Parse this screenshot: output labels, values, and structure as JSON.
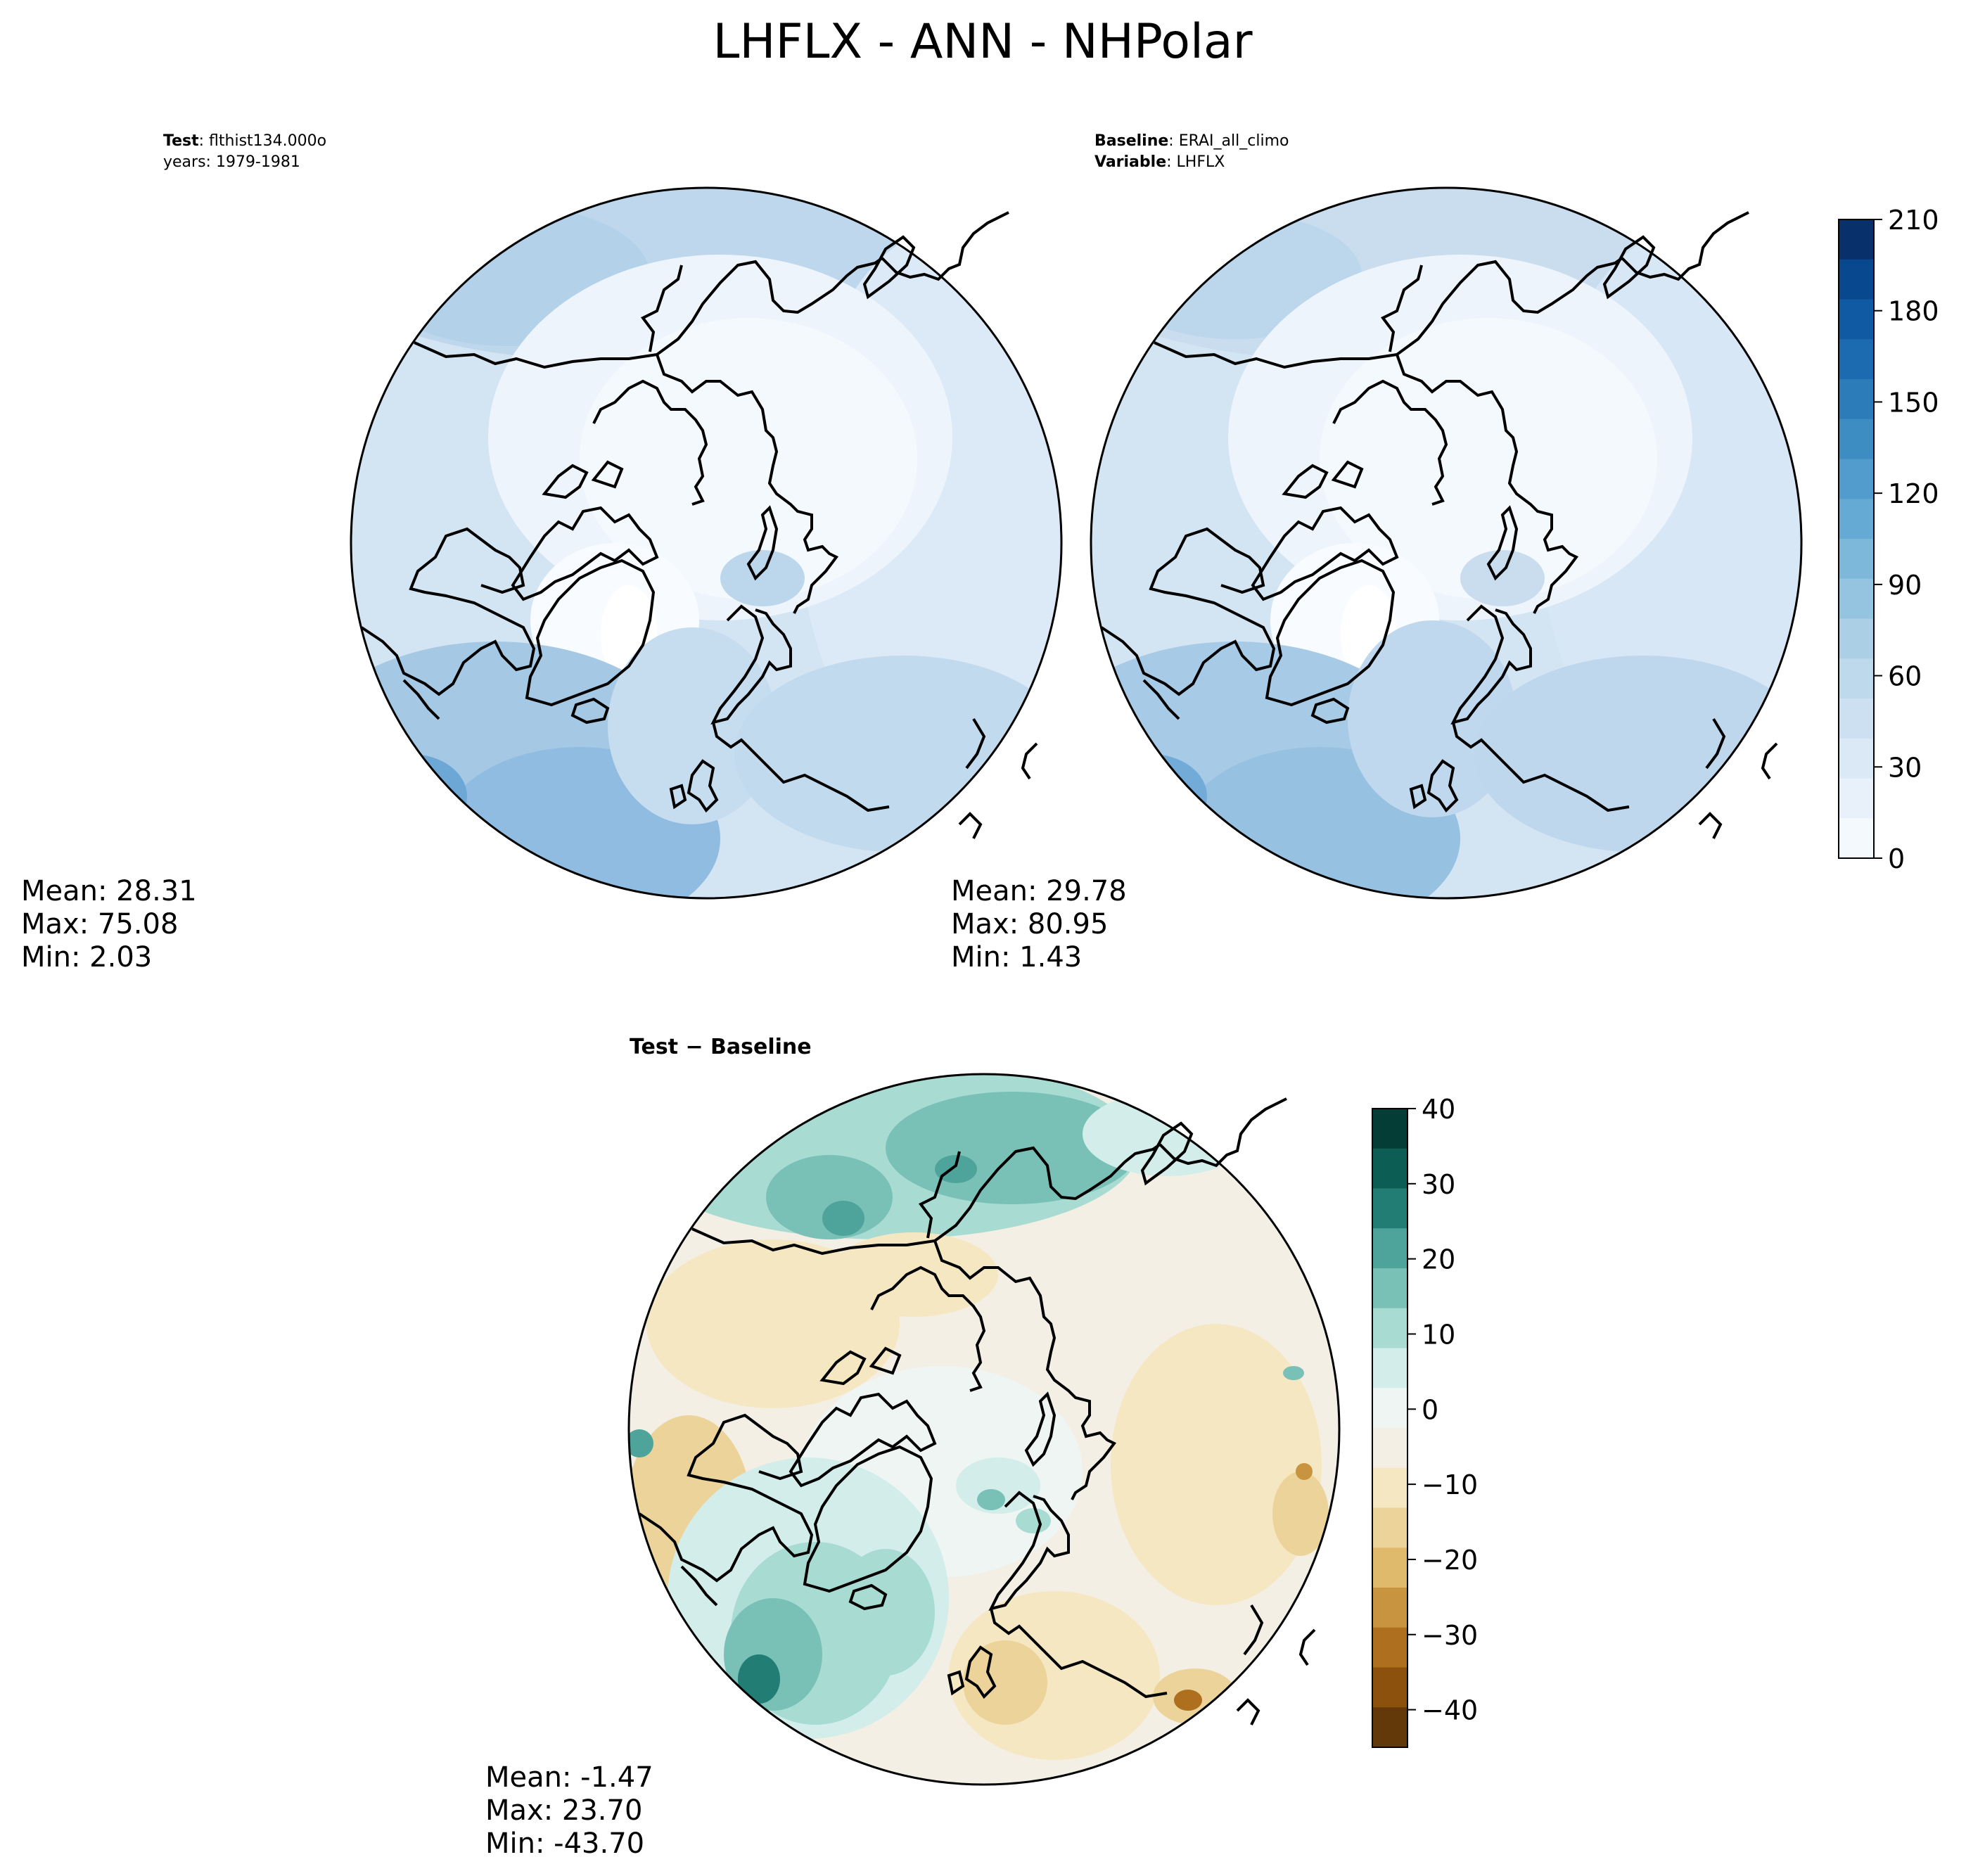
{
  "figure": {
    "title": "LHFLX - ANN - NHPolar"
  },
  "panels": {
    "test": {
      "header_bold": "Test",
      "header_value": "flthist134.000o",
      "header_line2": "years: 1979-1981",
      "stats": {
        "mean": "Mean: 28.31",
        "max": "Max: 75.08",
        "min": "Min:  2.03"
      }
    },
    "baseline": {
      "header_bold": "Baseline",
      "header_value": "ERAI_all_climo",
      "header2_bold": "Variable",
      "header2_value": "LHFLX",
      "stats": {
        "mean": "Mean: 29.78",
        "max": "Max: 80.95",
        "min": "Min:  1.43"
      }
    },
    "diff": {
      "header": "Test − Baseline",
      "stats": {
        "mean": "Mean: -1.47",
        "max": "Max: 23.70",
        "min": "Min: -43.70"
      }
    }
  },
  "colorbars": {
    "field": {
      "ticks": [
        "0",
        "30",
        "60",
        "90",
        "120",
        "150",
        "180",
        "210"
      ],
      "colors": [
        "#f4f9fe",
        "#e8f1fa",
        "#dbe9f6",
        "#cde0f1",
        "#bed8ec",
        "#abcfe5",
        "#94c4df",
        "#7db8da",
        "#65aad4",
        "#519ccc",
        "#3d8dc3",
        "#2c7cba",
        "#1c6aaf",
        "#0f5aa3",
        "#08488e",
        "#08306b"
      ]
    },
    "diff": {
      "ticks": [
        "40",
        "30",
        "20",
        "10",
        "0",
        "−10",
        "−20",
        "−30",
        "−40"
      ],
      "colors": [
        "#033d35",
        "#0c5e55",
        "#227e74",
        "#4ea39a",
        "#79c0b6",
        "#a8dbd2",
        "#d3eeea",
        "#eef5f3",
        "#f4efe4",
        "#f6e7c3",
        "#ecd39a",
        "#dfb96c",
        "#c99440",
        "#ae6f1e",
        "#8c520d",
        "#633909"
      ]
    }
  },
  "chart_data": [
    {
      "type": "heatmap",
      "name": "Test",
      "projection": "north polar stereographic",
      "variable": "LHFLX",
      "season": "ANN",
      "region": "NHPolar",
      "case": "flthist134.000o",
      "years": "1979-1981",
      "colorbar_range": [
        0,
        210
      ],
      "colorbar_ticks": [
        0,
        30,
        60,
        90,
        120,
        150,
        180,
        210
      ],
      "mean": 28.31,
      "max": 75.08,
      "min": 2.03
    },
    {
      "type": "heatmap",
      "name": "Baseline",
      "projection": "north polar stereographic",
      "variable": "LHFLX",
      "case": "ERAI_all_climo",
      "colorbar_range": [
        0,
        210
      ],
      "colorbar_ticks": [
        0,
        30,
        60,
        90,
        120,
        150,
        180,
        210
      ],
      "mean": 29.78,
      "max": 80.95,
      "min": 1.43
    },
    {
      "type": "heatmap",
      "name": "Test - Baseline",
      "projection": "north polar stereographic",
      "colorbar_range": [
        -45,
        40
      ],
      "colorbar_ticks": [
        -40,
        -30,
        -20,
        -10,
        0,
        10,
        20,
        30,
        40
      ],
      "mean": -1.47,
      "max": 23.7,
      "min": -43.7
    }
  ]
}
